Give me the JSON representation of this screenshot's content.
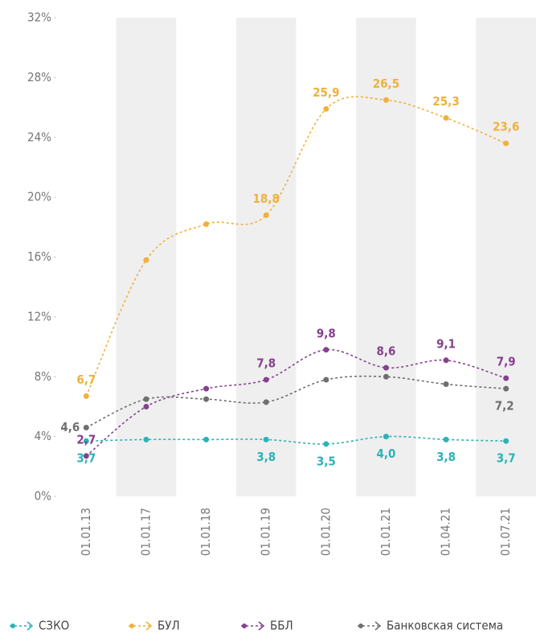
{
  "chart_data": {
    "type": "line",
    "categories": [
      "01.01.13",
      "01.01.17",
      "01.01.18",
      "01.01.19",
      "01.01.20",
      "01.01.21",
      "01.04.21",
      "01.07.21"
    ],
    "ylim": [
      0,
      32
    ],
    "yticks": [
      {
        "value": 0,
        "label": "0%"
      },
      {
        "value": 4,
        "label": "4%"
      },
      {
        "value": 8,
        "label": "8%"
      },
      {
        "value": 12,
        "label": "12%"
      },
      {
        "value": 16,
        "label": "16%"
      },
      {
        "value": 20,
        "label": "20%"
      },
      {
        "value": 24,
        "label": "24%"
      },
      {
        "value": 28,
        "label": "28%"
      },
      {
        "value": 32,
        "label": "32%"
      }
    ],
    "series": [
      {
        "name": "СЗКО",
        "color": "#2bb3b8",
        "values": [
          3.7,
          3.8,
          3.8,
          3.8,
          3.5,
          4.0,
          3.8,
          3.7
        ],
        "value_labels": [
          "3,7",
          null,
          null,
          "3,8",
          "3,5",
          "4,0",
          "3,8",
          "3,7"
        ]
      },
      {
        "name": "БУЛ",
        "color": "#f0b13c",
        "values": [
          6.7,
          15.8,
          18.2,
          18.8,
          25.9,
          26.5,
          25.3,
          23.6
        ],
        "value_labels": [
          "6,7",
          null,
          null,
          "18,8",
          "25,9",
          "26,5",
          "25,3",
          "23,6"
        ]
      },
      {
        "name": "ББЛ",
        "color": "#86408f",
        "values": [
          2.7,
          6.0,
          7.2,
          7.8,
          9.8,
          8.6,
          9.1,
          7.9
        ],
        "value_labels": [
          "2,7",
          null,
          null,
          "7,8",
          "9,8",
          "8,6",
          "9,1",
          "7,9"
        ]
      },
      {
        "name": "Банковская система",
        "color": "#6f6f6f",
        "values": [
          4.6,
          6.5,
          6.5,
          6.3,
          7.8,
          8.0,
          7.5,
          7.2
        ],
        "value_labels": [
          "4,6",
          null,
          null,
          null,
          null,
          null,
          null,
          "7,2"
        ]
      }
    ]
  }
}
